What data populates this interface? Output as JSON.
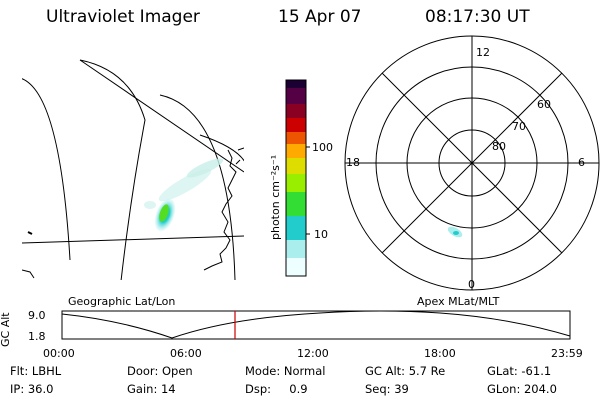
{
  "header": {
    "instrument": "Ultraviolet Imager",
    "date": "15 Apr 07",
    "time": "08:17:30 UT"
  },
  "colorbar": {
    "label": "photon cm⁻²s⁻¹",
    "ticks": [
      "100",
      "10"
    ],
    "colors": [
      "#1a0033",
      "#550044",
      "#8a0022",
      "#cc0000",
      "#ee5500",
      "#ffaa00",
      "#dddd00",
      "#99ee00",
      "#33dd33",
      "#22cccc",
      "#aaeeee",
      "#eeffff"
    ]
  },
  "left_map": {
    "label": "Geographic Lat/Lon"
  },
  "right_map": {
    "label": "Apex MLat/MLT",
    "mlt_labels": {
      "top": "12",
      "left": "18",
      "right": "6",
      "bottom": "0"
    },
    "lat_labels": [
      "60",
      "70",
      "80"
    ]
  },
  "altitude_plot": {
    "ylabel": "GC Alt",
    "yticks": [
      "9.0",
      "1.8"
    ],
    "xticks": [
      "00:00",
      "06:00",
      "12:00",
      "18:00",
      "23:59"
    ],
    "marker_time": "08:17:30"
  },
  "info": {
    "flt": "Flt: LBHL",
    "door": "Door: Open",
    "mode": "Mode: Normal",
    "gcalt": "GC Alt: 5.7 Re",
    "glat": "GLat: -61.1",
    "ip": "IP: 36.0",
    "gain": "Gain: 14",
    "dsp": "Dsp:     0.9",
    "seq": "Seq: 39",
    "glon": "GLon: 204.0"
  }
}
